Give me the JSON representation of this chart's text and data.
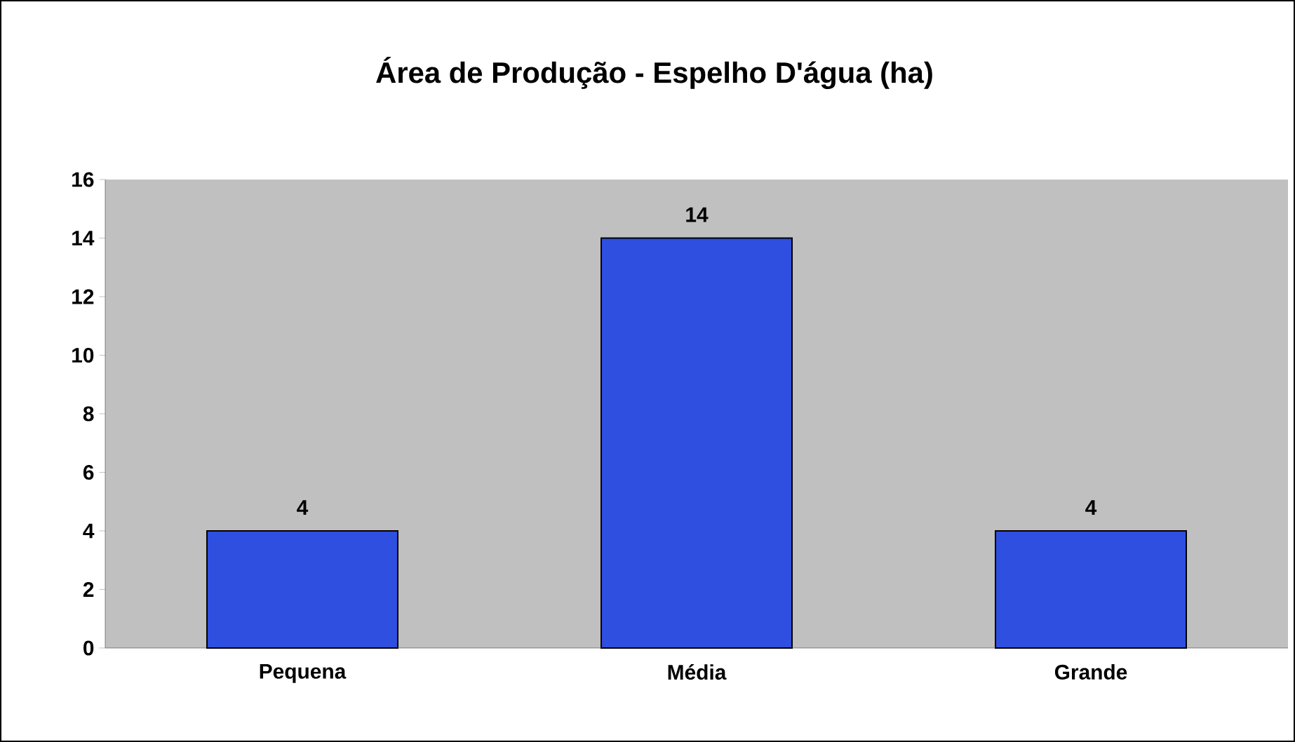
{
  "chart_data": {
    "type": "bar",
    "title": "Área de Produção - Espelho D'água (ha)",
    "categories": [
      "Pequena",
      "Média",
      "Grande"
    ],
    "values": [
      4,
      14,
      4
    ],
    "color": "#2f4fe0",
    "ylim": [
      0,
      16
    ],
    "yticks": [
      0,
      2,
      4,
      6,
      8,
      10,
      12,
      14,
      16
    ],
    "data_labels": true
  }
}
